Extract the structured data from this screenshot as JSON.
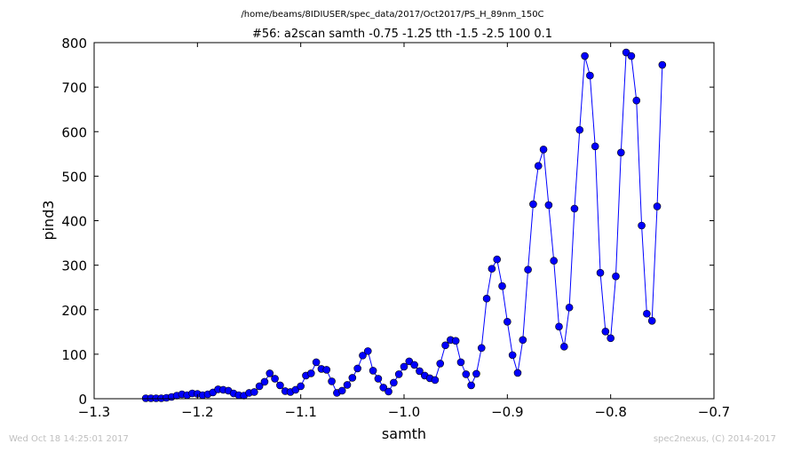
{
  "chart_data": {
    "type": "line",
    "suptitle": "/home/beams/8IDIUSER/spec_data/2017/Oct2017/PS_H_89nm_150C",
    "title": "#56: a2scan  samth -0.75 -1.25  tth -1.5 -2.5  100 0.1",
    "xlabel": "samth",
    "ylabel": "pind3",
    "xlim": [
      -1.3,
      -0.7
    ],
    "ylim": [
      0,
      800
    ],
    "xticks": [
      -1.3,
      -1.2,
      -1.1,
      -1.0,
      -0.9,
      -0.8,
      -0.7
    ],
    "xtick_labels": [
      "−1.3",
      "−1.2",
      "−1.1",
      "−1.0",
      "−0.9",
      "−0.8",
      "−0.7"
    ],
    "yticks": [
      0,
      100,
      200,
      300,
      400,
      500,
      600,
      700,
      800
    ],
    "ytick_labels": [
      "0",
      "100",
      "200",
      "300",
      "400",
      "500",
      "600",
      "700",
      "800"
    ],
    "grid": false,
    "legend": "none",
    "series": [
      {
        "color": "#0000ff",
        "marker": "circle",
        "x": [
          -1.25,
          -1.245,
          -1.24,
          -1.235,
          -1.23,
          -1.225,
          -1.22,
          -1.215,
          -1.21,
          -1.205,
          -1.2,
          -1.195,
          -1.19,
          -1.185,
          -1.18,
          -1.175,
          -1.17,
          -1.165,
          -1.16,
          -1.155,
          -1.15,
          -1.145,
          -1.14,
          -1.135,
          -1.13,
          -1.125,
          -1.12,
          -1.115,
          -1.11,
          -1.105,
          -1.1,
          -1.095,
          -1.09,
          -1.085,
          -1.08,
          -1.075,
          -1.07,
          -1.065,
          -1.06,
          -1.055,
          -1.05,
          -1.045,
          -1.04,
          -1.035,
          -1.03,
          -1.025,
          -1.02,
          -1.015,
          -1.01,
          -1.005,
          -1.0,
          -0.995,
          -0.99,
          -0.985,
          -0.98,
          -0.975,
          -0.97,
          -0.965,
          -0.96,
          -0.955,
          -0.95,
          -0.945,
          -0.94,
          -0.935,
          -0.93,
          -0.925,
          -0.92,
          -0.915,
          -0.91,
          -0.905,
          -0.9,
          -0.895,
          -0.89,
          -0.885,
          -0.88,
          -0.875,
          -0.87,
          -0.865,
          -0.86,
          -0.855,
          -0.85,
          -0.845,
          -0.84,
          -0.835,
          -0.83,
          -0.825,
          -0.82,
          -0.815,
          -0.81,
          -0.805,
          -0.8,
          -0.795,
          -0.79,
          -0.785,
          -0.78,
          -0.775,
          -0.77,
          -0.765,
          -0.76,
          -0.755,
          -0.75
        ],
        "y": [
          1,
          1,
          1,
          1,
          2,
          4,
          7,
          10,
          8,
          12,
          11,
          8,
          10,
          14,
          21,
          20,
          18,
          12,
          8,
          7,
          13,
          15,
          28,
          38,
          57,
          45,
          30,
          17,
          15,
          20,
          28,
          52,
          57,
          82,
          67,
          65,
          39,
          13,
          18,
          31,
          47,
          68,
          97,
          107,
          63,
          45,
          25,
          16,
          36,
          55,
          72,
          84,
          76,
          62,
          52,
          46,
          42,
          79,
          120,
          132,
          130,
          82,
          55,
          30,
          56,
          114,
          225,
          292,
          313,
          253,
          173,
          98,
          58,
          132,
          290,
          437,
          523,
          560,
          435,
          310,
          162,
          117,
          205,
          427,
          604,
          770,
          726,
          567,
          283,
          151,
          136,
          275,
          553,
          778,
          770,
          670,
          389,
          191,
          175,
          432,
          750
        ]
      }
    ],
    "footer_left": "Wed Oct 18 14:25:01 2017",
    "footer_right": "spec2nexus, (C) 2014-2017"
  }
}
